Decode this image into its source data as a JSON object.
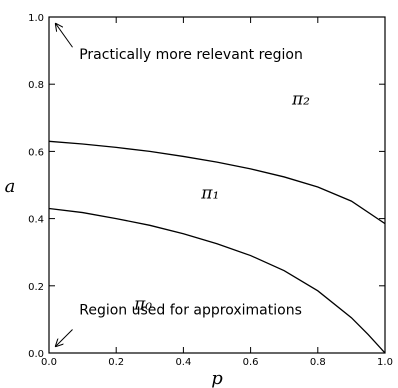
{
  "chart_data": {
    "type": "line",
    "xlabel": "p",
    "ylabel": "a",
    "xlim": [
      0,
      1
    ],
    "ylim": [
      0,
      1
    ],
    "xticks": [
      "0.0",
      "0.2",
      "0.4",
      "0.6",
      "0.8",
      "1.0"
    ],
    "yticks": [
      "0.0",
      "0.2",
      "0.4",
      "0.6",
      "0.8",
      "1.0"
    ],
    "grid": false,
    "series": [
      {
        "x": [
          0,
          0.1,
          0.2,
          0.3,
          0.4,
          0.5,
          0.6,
          0.7,
          0.8,
          0.9,
          0.95,
          1.0
        ],
        "values": [
          0.43,
          0.418,
          0.4,
          0.38,
          0.355,
          0.325,
          0.29,
          0.245,
          0.185,
          0.105,
          0.055,
          0.0
        ]
      },
      {
        "x": [
          0,
          0.1,
          0.2,
          0.3,
          0.4,
          0.5,
          0.6,
          0.7,
          0.8,
          0.9,
          1.0
        ],
        "values": [
          0.63,
          0.622,
          0.612,
          0.6,
          0.585,
          0.568,
          0.548,
          0.524,
          0.494,
          0.452,
          0.385
        ]
      }
    ],
    "region_labels": [
      {
        "text": "π₀",
        "x": 0.28,
        "y": 0.13
      },
      {
        "text": "π₁",
        "x": 0.48,
        "y": 0.46
      },
      {
        "text": "π₂",
        "x": 0.75,
        "y": 0.74
      }
    ],
    "annotations": [
      {
        "text": "Practically more relevant region",
        "x": 0.09,
        "y": 0.89,
        "arrow_to": [
          0.02,
          0.98
        ],
        "arrow_from": [
          0.07,
          0.91
        ]
      },
      {
        "text": "Region used for approximations",
        "x": 0.09,
        "y": 0.13,
        "arrow_to": [
          0.02,
          0.02
        ],
        "arrow_from": [
          0.07,
          0.07
        ]
      }
    ]
  }
}
